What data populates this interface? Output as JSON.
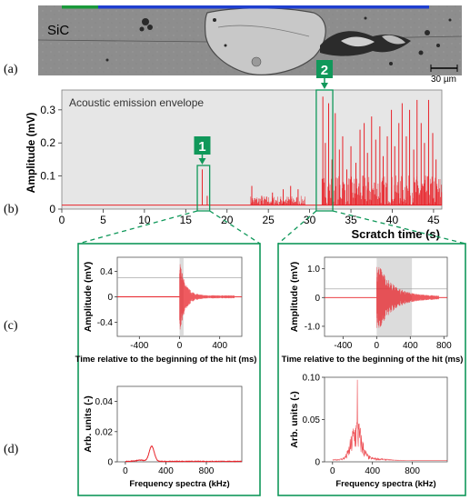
{
  "panel_labels": {
    "a": "(a)",
    "b": "(b)",
    "c": "(c)",
    "d": "(d)"
  },
  "micrograph": {
    "material_label": "SiC",
    "scale_bar_label": "30 µm",
    "colors": {
      "bar_green": "#1a9a3a",
      "bar_blue": "#1f3fd0",
      "background": "#8f8f8f",
      "crater": "#c9c9c9"
    }
  },
  "markers": [
    {
      "label": "1"
    },
    {
      "label": "2"
    }
  ],
  "colors": {
    "signal": "#e8232a",
    "marker": "#10985a",
    "plot_bg": "#e6e6e6",
    "window": "#dcdcdc"
  },
  "chart_data": [
    {
      "id": "b",
      "type": "line",
      "title": "Acoustic emission envelope",
      "xlabel": "Scratch time (s)",
      "ylabel": "Amplitude (mV)",
      "xlim": [
        0,
        46
      ],
      "ylim": [
        0,
        0.36
      ],
      "xticks": [
        0,
        5,
        10,
        15,
        20,
        25,
        30,
        35,
        40,
        45
      ],
      "yticks": [
        0,
        0.1,
        0.2,
        0.3
      ],
      "ytick_labels": [
        "0",
        "0.1",
        "0.2",
        "0.3"
      ],
      "baseline": 0.012,
      "regions": [
        {
          "x_start": 0,
          "x_end": 16.5,
          "level": "baseline noise"
        },
        {
          "x_start": 22.8,
          "x_end": 29.5,
          "level": "low activity, peaks up to ~0.07"
        },
        {
          "x_start": 31.5,
          "x_end": 46,
          "level": "high activity, peaks up to ~0.35"
        }
      ],
      "peaks": [
        {
          "x": 17.0,
          "y": 0.12
        },
        {
          "x": 17.6,
          "y": 0.04
        },
        {
          "x": 23.0,
          "y": 0.07
        },
        {
          "x": 24.2,
          "y": 0.04
        },
        {
          "x": 25.5,
          "y": 0.05
        },
        {
          "x": 26.8,
          "y": 0.06
        },
        {
          "x": 27.7,
          "y": 0.07
        },
        {
          "x": 28.6,
          "y": 0.06
        },
        {
          "x": 31.6,
          "y": 0.34
        },
        {
          "x": 31.9,
          "y": 0.2
        },
        {
          "x": 32.3,
          "y": 0.32
        },
        {
          "x": 32.7,
          "y": 0.15
        },
        {
          "x": 33.1,
          "y": 0.29
        },
        {
          "x": 33.6,
          "y": 0.18
        },
        {
          "x": 34.0,
          "y": 0.22
        },
        {
          "x": 34.5,
          "y": 0.12
        },
        {
          "x": 35.0,
          "y": 0.19
        },
        {
          "x": 35.6,
          "y": 0.14
        },
        {
          "x": 36.1,
          "y": 0.24
        },
        {
          "x": 36.6,
          "y": 0.26
        },
        {
          "x": 37.0,
          "y": 0.17
        },
        {
          "x": 37.5,
          "y": 0.28
        },
        {
          "x": 38.0,
          "y": 0.21
        },
        {
          "x": 38.5,
          "y": 0.25
        },
        {
          "x": 38.9,
          "y": 0.16
        },
        {
          "x": 39.4,
          "y": 0.22
        },
        {
          "x": 39.9,
          "y": 0.3
        },
        {
          "x": 40.3,
          "y": 0.19
        },
        {
          "x": 40.8,
          "y": 0.26
        },
        {
          "x": 41.2,
          "y": 0.32
        },
        {
          "x": 41.7,
          "y": 0.22
        },
        {
          "x": 42.1,
          "y": 0.3
        },
        {
          "x": 42.6,
          "y": 0.18
        },
        {
          "x": 43.0,
          "y": 0.33
        },
        {
          "x": 43.5,
          "y": 0.26
        },
        {
          "x": 43.9,
          "y": 0.2
        },
        {
          "x": 44.4,
          "y": 0.33
        },
        {
          "x": 44.9,
          "y": 0.23
        },
        {
          "x": 45.3,
          "y": 0.15
        }
      ],
      "annotations": [
        {
          "label": "1",
          "x": 17.0,
          "box_x": [
            16.4,
            17.9
          ]
        },
        {
          "label": "2",
          "x": 31.8,
          "box_x": [
            30.8,
            32.8
          ]
        }
      ]
    },
    {
      "id": "c1",
      "type": "line",
      "xlabel": "Time relative to the beginning of the hit (ms)",
      "ylabel": "Amplitude (mV)",
      "xlim": [
        -620,
        620
      ],
      "ylim": [
        -0.62,
        0.62
      ],
      "xticks": [
        -400,
        0,
        400
      ],
      "yticks": [
        -0.4,
        0,
        0.4
      ],
      "ytick_labels": [
        "-0.4",
        "0",
        "0.4"
      ],
      "hit_start_ms": 0,
      "peak_amplitude": 0.58,
      "threshold": 0.3,
      "analysis_window_ms": [
        0,
        40
      ]
    },
    {
      "id": "c2",
      "type": "line",
      "xlabel": "Time relative to the beginning of the hit (ms)",
      "ylabel": "Amplitude (mV)",
      "xlim": [
        -620,
        840
      ],
      "ylim": [
        -1.35,
        1.4
      ],
      "xticks": [
        -400,
        0,
        400,
        800
      ],
      "yticks": [
        -1.0,
        0,
        1.0
      ],
      "ytick_labels": [
        "-1.0",
        "0",
        "1.0"
      ],
      "hit_start_ms": 0,
      "peak_amplitude": 1.3,
      "threshold": 0.3,
      "analysis_window_ms": [
        0,
        420
      ]
    },
    {
      "id": "d1",
      "type": "line",
      "xlabel": "Frequency spectra (kHz)",
      "ylabel": "Arb. units (-)",
      "xlim": [
        -80,
        1150
      ],
      "ylim": [
        0,
        0.05
      ],
      "xticks": [
        0,
        400,
        800
      ],
      "yticks": [
        0,
        0.02,
        0.04
      ],
      "ytick_labels": [
        "0",
        "0.02",
        "0.04"
      ],
      "peak": {
        "x": 260,
        "y": 0.01
      }
    },
    {
      "id": "d2",
      "type": "line",
      "xlabel": "Frequency spectra (kHz)",
      "ylabel": "Arb. units (-)",
      "xlim": [
        -80,
        1150
      ],
      "ylim": [
        0,
        0.1
      ],
      "xticks": [
        0,
        400,
        800
      ],
      "yticks": [
        0,
        0.05,
        0.1
      ],
      "ytick_labels": [
        "0",
        "0.05",
        "0.10"
      ],
      "peak": {
        "x": 250,
        "y": 0.097
      }
    }
  ]
}
